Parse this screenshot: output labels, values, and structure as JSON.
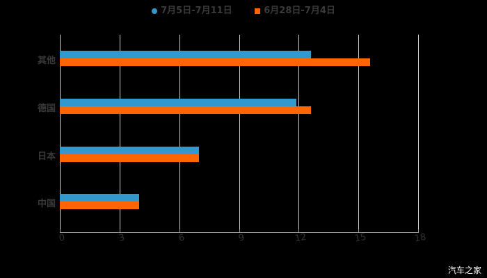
{
  "chart_data": {
    "type": "bar",
    "orientation": "horizontal",
    "categories": [
      "其他",
      "德国",
      "日本",
      "中国"
    ],
    "series": [
      {
        "name": "7月5日-7月11日",
        "color": "#3399cc",
        "values": [
          12.6,
          11.9,
          7,
          4
        ]
      },
      {
        "name": "6月28日-7月4日",
        "color": "#ff6600",
        "values": [
          15.6,
          12.6,
          7,
          4
        ]
      }
    ],
    "xlim": [
      0,
      18
    ],
    "xticks": [
      "0",
      "3",
      "6",
      "9",
      "12",
      "15",
      "18"
    ],
    "grid": true,
    "legend_position": "top"
  },
  "watermark": "汽车之家"
}
